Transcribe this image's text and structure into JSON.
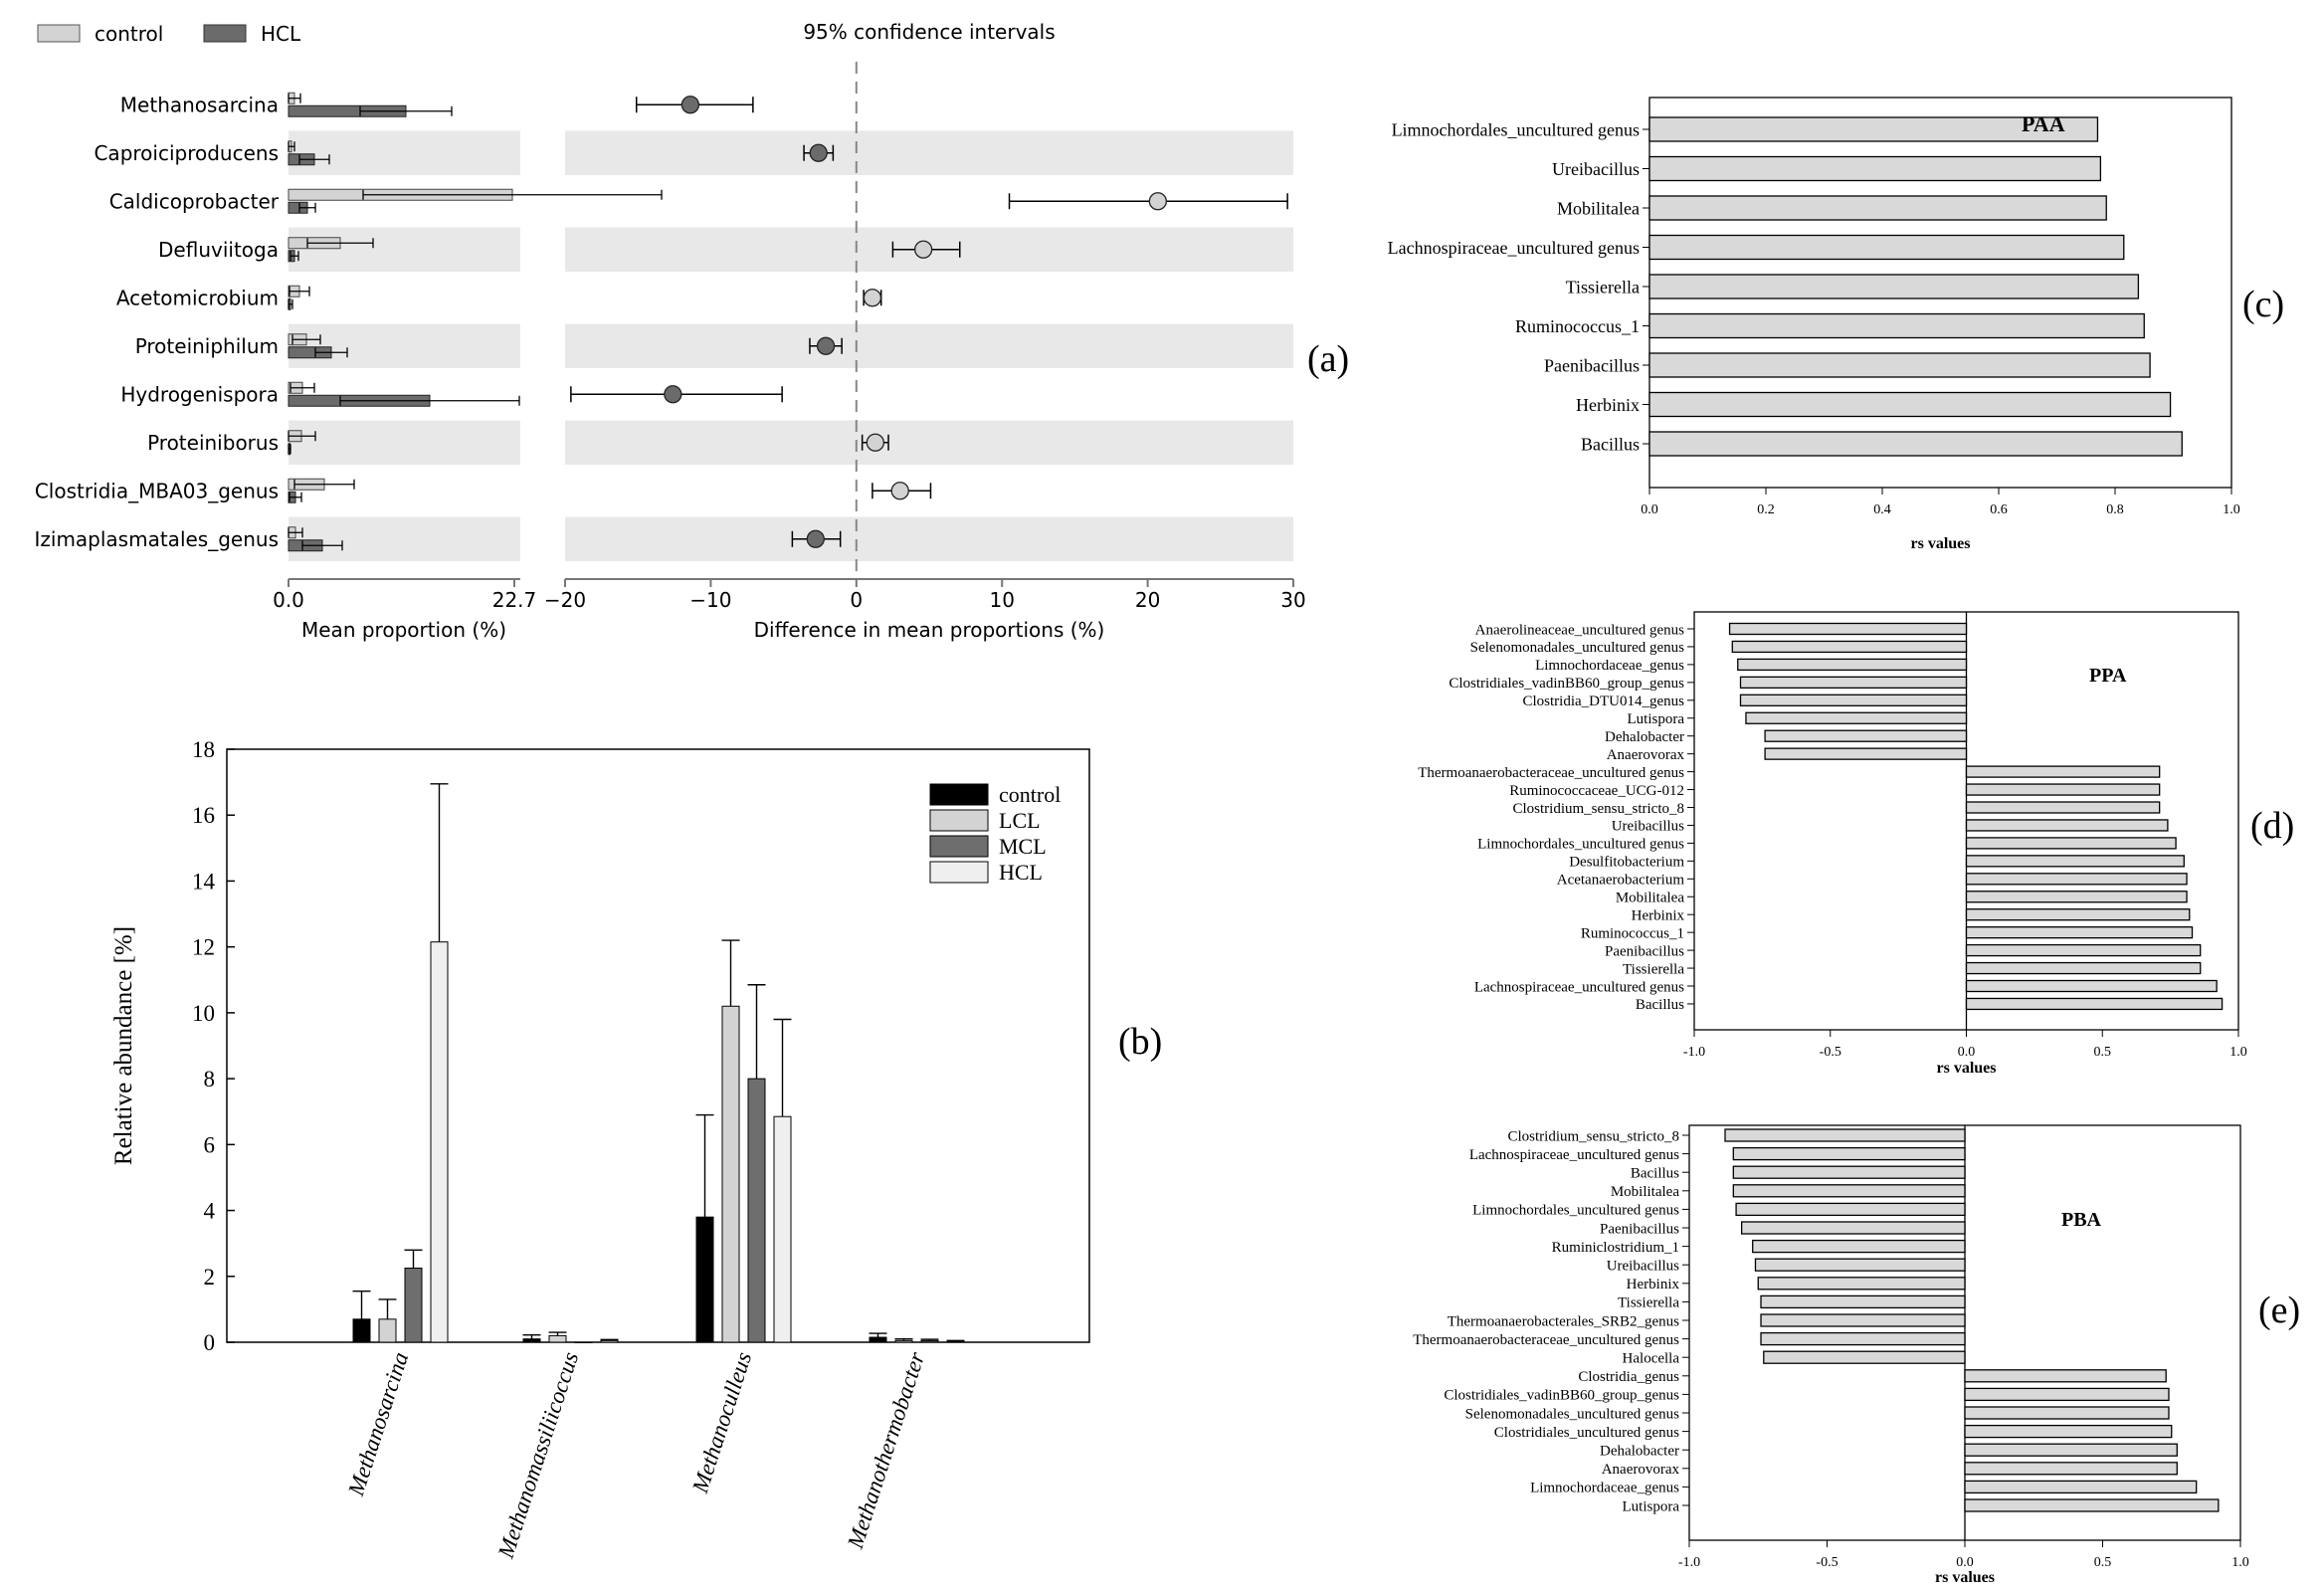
{
  "panel_letters": {
    "a": "(a)",
    "b": "(b)",
    "c": "(c)",
    "d": "(d)",
    "e": "(e)"
  },
  "colors": {
    "control_light": "#d3d3d3",
    "hcl_dark": "#6b6b6b",
    "band": "#e8e8e8",
    "bar_grey": "#d9d9d9",
    "b_control": "#000000",
    "b_lcl": "#d3d3d3",
    "b_mcl": "#6e6e6e",
    "b_hcl": "#efefef"
  },
  "chart_data": [
    {
      "id": "a",
      "type": "bar",
      "subtype": "extended-error-bar",
      "legend": [
        "control",
        "HCL"
      ],
      "title": "95% confidence intervals",
      "xlabel_left": "Mean proportion (%)",
      "xlabel_right": "Difference in mean proportions (%)",
      "left_xlim": [
        0,
        22.7
      ],
      "left_ticks": [
        "0.0",
        "22.7"
      ],
      "right_xlim": [
        -20,
        30
      ],
      "right_ticks": [
        "−20",
        "−10",
        "0",
        "10",
        "20",
        "30"
      ],
      "categories": [
        "Methanosarcina",
        "Caproiciproducens",
        "Caldicoprobacter",
        "Defluviitoga",
        "Acetomicrobium",
        "Proteiniphilum",
        "Hydrogenispora",
        "Proteiniborus",
        "Clostridia_MBA03_genus",
        "Izimaplasmatales_genus"
      ],
      "series": [
        {
          "name": "control",
          "values": [
            0.6,
            0.3,
            22.5,
            5.2,
            1.1,
            1.8,
            1.4,
            1.3,
            3.6,
            0.7
          ],
          "err": [
            0.6,
            0.3,
            15.0,
            3.3,
            1.0,
            1.4,
            1.2,
            1.4,
            3.0,
            0.7
          ]
        },
        {
          "name": "HCL",
          "values": [
            11.8,
            2.6,
            1.9,
            0.6,
            0.2,
            4.3,
            14.2,
            0.1,
            0.7,
            3.4
          ],
          "err": [
            4.6,
            1.5,
            0.8,
            0.4,
            0.2,
            1.6,
            9.0,
            0.1,
            0.6,
            2.0
          ]
        }
      ],
      "diff": [
        {
          "mean": -11.4,
          "lo": -15.1,
          "hi": -7.1,
          "favors": "HCL"
        },
        {
          "mean": -2.6,
          "lo": -3.6,
          "hi": -1.6,
          "favors": "HCL"
        },
        {
          "mean": 20.7,
          "lo": 10.5,
          "hi": 29.6,
          "favors": "control"
        },
        {
          "mean": 4.6,
          "lo": 2.5,
          "hi": 7.1,
          "favors": "control"
        },
        {
          "mean": 1.1,
          "lo": 0.5,
          "hi": 1.7,
          "favors": "control"
        },
        {
          "mean": -2.1,
          "lo": -3.2,
          "hi": -1.0,
          "favors": "HCL"
        },
        {
          "mean": -12.6,
          "lo": -19.6,
          "hi": -5.1,
          "favors": "HCL"
        },
        {
          "mean": 1.3,
          "lo": 0.4,
          "hi": 2.2,
          "favors": "control"
        },
        {
          "mean": 3.0,
          "lo": 1.1,
          "hi": 5.1,
          "favors": "control"
        },
        {
          "mean": -2.8,
          "lo": -4.4,
          "hi": -1.1,
          "favors": "HCL"
        }
      ]
    },
    {
      "id": "b",
      "type": "bar",
      "ylabel": "Relative abundance [%]",
      "ylim": [
        0,
        18
      ],
      "yticks": [
        "0",
        "2",
        "4",
        "6",
        "8",
        "10",
        "12",
        "14",
        "16",
        "18"
      ],
      "categories": [
        "Methanosarcina",
        "Methanomassiliicoccus",
        "Methanoculleus",
        "Methanothermobacter"
      ],
      "series": [
        {
          "name": "control",
          "values": [
            0.7,
            0.1,
            3.8,
            0.15
          ],
          "err": [
            0.85,
            0.12,
            3.1,
            0.12
          ]
        },
        {
          "name": "LCL",
          "values": [
            0.7,
            0.2,
            10.2,
            0.05
          ],
          "err": [
            0.6,
            0.1,
            2.0,
            0.05
          ]
        },
        {
          "name": "MCL",
          "values": [
            2.25,
            0.0,
            8.0,
            0.05
          ],
          "err": [
            0.55,
            0.0,
            2.85,
            0.04
          ]
        },
        {
          "name": "HCL",
          "values": [
            12.15,
            0.05,
            6.85,
            0.03
          ],
          "err": [
            4.8,
            0.03,
            2.95,
            0.02
          ]
        }
      ]
    },
    {
      "id": "c",
      "type": "bar",
      "orientation": "horizontal",
      "title": "PAA",
      "xlabel": "rs values",
      "xlim": [
        0,
        1.0
      ],
      "xticks": [
        "0.0",
        "0.2",
        "0.4",
        "0.6",
        "0.8",
        "1.0"
      ],
      "categories": [
        "Limnochordales_uncultured genus",
        "Ureibacillus",
        "Mobilitalea",
        "Lachnospiraceae_uncultured genus",
        "Tissierella",
        "Ruminococcus_1",
        "Paenibacillus",
        "Herbinix",
        "Bacillus"
      ],
      "values": [
        0.77,
        0.775,
        0.785,
        0.815,
        0.84,
        0.85,
        0.86,
        0.895,
        0.915
      ]
    },
    {
      "id": "d",
      "type": "bar",
      "orientation": "horizontal",
      "title": "PPA",
      "xlabel": "rs values",
      "xlim": [
        -1.0,
        1.0
      ],
      "xticks": [
        "-1.0",
        "-0.5",
        "0.0",
        "0.5",
        "1.0"
      ],
      "categories": [
        "Anaerolineaceae_uncultured genus",
        "Selenomonadales_uncultured genus",
        "Limnochordaceae_genus",
        "Clostridiales_vadinBB60_group_genus",
        "Clostridia_DTU014_genus",
        "Lutispora",
        "Dehalobacter",
        "Anaerovorax",
        "Thermoanaerobacteraceae_uncultured genus",
        "Ruminococcaceae_UCG-012",
        "Clostridium_sensu_stricto_8",
        "Ureibacillus",
        "Limnochordales_uncultured genus",
        "Desulfitobacterium",
        "Acetanaerobacterium",
        "Mobilitalea",
        "Herbinix",
        "Ruminococcus_1",
        "Paenibacillus",
        "Tissierella",
        "Lachnospiraceae_uncultured genus",
        "Bacillus"
      ],
      "values": [
        -0.87,
        -0.86,
        -0.84,
        -0.83,
        -0.83,
        -0.81,
        -0.74,
        -0.74,
        0.71,
        0.71,
        0.71,
        0.74,
        0.77,
        0.8,
        0.81,
        0.81,
        0.82,
        0.83,
        0.86,
        0.86,
        0.92,
        0.94
      ]
    },
    {
      "id": "e",
      "type": "bar",
      "orientation": "horizontal",
      "title": "PBA",
      "xlabel": "rs values",
      "xlim": [
        -1.0,
        1.0
      ],
      "xticks": [
        "-1.0",
        "-0.5",
        "0.0",
        "0.5",
        "1.0"
      ],
      "categories": [
        "Clostridium_sensu_stricto_8",
        "Lachnospiraceae_uncultured genus",
        "Bacillus",
        "Mobilitalea",
        "Limnochordales_uncultured genus",
        "Paenibacillus",
        "Ruminiclostridium_1",
        "Ureibacillus",
        "Herbinix",
        "Tissierella",
        "Thermoanaerobacterales_SRB2_genus",
        "Thermoanaerobacteraceae_uncultured genus",
        "Halocella",
        "Clostridia_genus",
        "Clostridiales_vadinBB60_group_genus",
        "Selenomonadales_uncultured genus",
        "Clostridiales_uncultured genus",
        "Dehalobacter",
        "Anaerovorax",
        "Limnochordaceae_genus",
        "Lutispora"
      ],
      "values": [
        -0.87,
        -0.84,
        -0.84,
        -0.84,
        -0.83,
        -0.81,
        -0.77,
        -0.76,
        -0.75,
        -0.74,
        -0.74,
        -0.74,
        -0.73,
        0.73,
        0.74,
        0.74,
        0.75,
        0.77,
        0.77,
        0.84,
        0.92
      ]
    }
  ]
}
